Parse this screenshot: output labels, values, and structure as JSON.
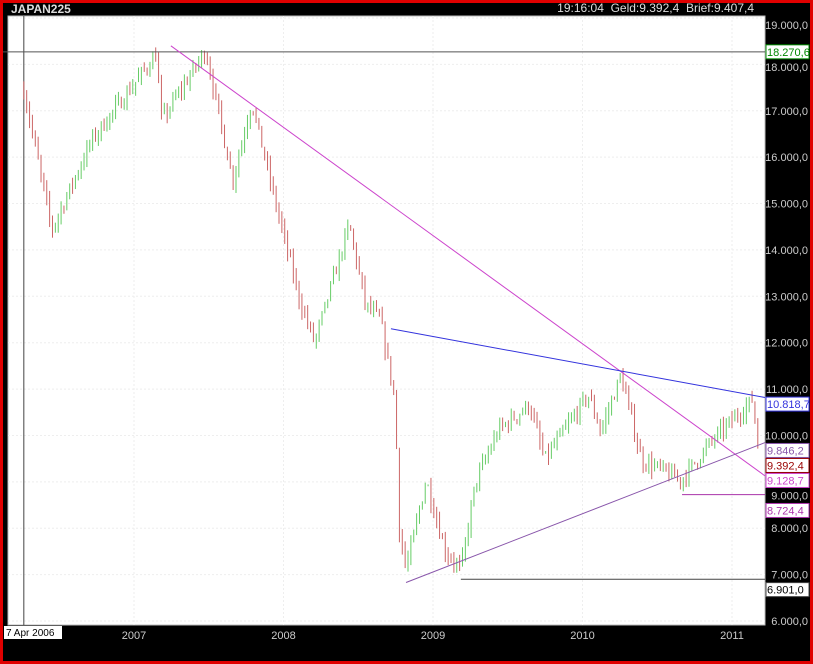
{
  "header": {
    "symbol": "JAPAN225",
    "time": "19:16:04",
    "bid": "Geld:9.392,4",
    "ask": "Brief:9.407,4"
  },
  "chart_data": {
    "type": "bar",
    "title": "",
    "x_range": [
      "2006-04-07",
      "2011-03-11"
    ],
    "start_label": "7 Apr 2006",
    "x_ticks": [
      "2007",
      "2008",
      "2009",
      "2010",
      "2011"
    ],
    "ylim": [
      6000,
      19000
    ],
    "y_ticks": [
      "6.000,0",
      "7.000,0",
      "8.000,0",
      "9.000,0",
      "10.000,0",
      "11.000,0",
      "12.000,0",
      "13.000,0",
      "14.000,0",
      "15.000,0",
      "16.000,0",
      "17.000,0",
      "18.000,0",
      "19.000,0"
    ],
    "grid": true,
    "up_color": "#66cc66",
    "down_color": "#cc6666",
    "price_path": [
      [
        "2006-04-07",
        17450
      ],
      [
        "2006-06-14",
        14430
      ],
      [
        "2006-09-20",
        16370
      ],
      [
        "2007-02-23",
        18200
      ],
      [
        "2007-03-10",
        16800
      ],
      [
        "2007-06-25",
        18300
      ],
      [
        "2007-08-30",
        15500
      ],
      [
        "2007-10-15",
        17200
      ],
      [
        "2007-12-10",
        15100
      ],
      [
        "2008-02-10",
        12900
      ],
      [
        "2008-03-17",
        12000
      ],
      [
        "2008-06-10",
        14540
      ],
      [
        "2008-07-20",
        12800
      ],
      [
        "2008-08-25",
        12500
      ],
      [
        "2008-09-30",
        10760
      ],
      [
        "2008-10-10",
        8000
      ],
      [
        "2008-10-27",
        7100
      ],
      [
        "2008-12-15",
        9040
      ],
      [
        "2009-01-30",
        7530
      ],
      [
        "2009-03-10",
        7100
      ],
      [
        "2009-04-15",
        9000
      ],
      [
        "2009-06-10",
        10120
      ],
      [
        "2009-08-25",
        10660
      ],
      [
        "2009-09-30",
        9470
      ],
      [
        "2010-01-15",
        10870
      ],
      [
        "2010-02-15",
        10100
      ],
      [
        "2010-04-05",
        11300
      ],
      [
        "2010-05-25",
        9470
      ],
      [
        "2010-08-30",
        9040
      ],
      [
        "2010-11-15",
        9900
      ],
      [
        "2011-02-20",
        10770
      ],
      [
        "2011-03-11",
        9400
      ]
    ],
    "lines": [
      {
        "kind": "horizontal",
        "value": 18270.6,
        "label": "18.270,6",
        "color": "#555555",
        "label_color": "#008800"
      },
      {
        "kind": "trend",
        "from": [
          "2007-04-01",
          18400
        ],
        "to": [
          "2011-03-11",
          9128.7
        ],
        "label": "9.128,7",
        "color": "#cc44cc"
      },
      {
        "kind": "trend",
        "from": [
          "2008-09-20",
          12300
        ],
        "to": [
          "2011-03-11",
          10818.7
        ],
        "label": "10.818,7",
        "color": "#3333dd"
      },
      {
        "kind": "trend",
        "from": [
          "2008-10-27",
          6830
        ],
        "to": [
          "2011-03-11",
          9846.2
        ],
        "label": "9.846,2",
        "color": "#8855aa"
      },
      {
        "kind": "horizontal_from",
        "from": "2009-03-10",
        "value": 6901.0,
        "label": "6.901,0",
        "color": "#444444"
      },
      {
        "kind": "horizontal_from",
        "from": "2010-09-01",
        "value": 8724.4,
        "label": "8.724,4",
        "color": "#aa33aa"
      },
      {
        "kind": "last",
        "value": 9392.4,
        "label": "9.392,4",
        "color": "#990000"
      }
    ]
  }
}
